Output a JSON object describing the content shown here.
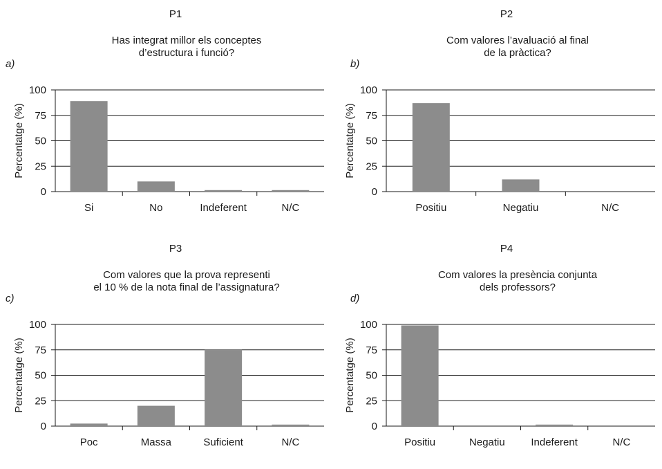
{
  "chart_data": [
    {
      "panel_label": "a)",
      "question_id": "P1",
      "title_lines": [
        "Has integrat millor els conceptes",
        "d’estructura i funció?"
      ],
      "type": "bar",
      "ylabel": "Percentatge (%)",
      "ylim": [
        0,
        100
      ],
      "yticks": [
        "0",
        "25",
        "50",
        "75",
        "100"
      ],
      "categories": [
        "Si",
        "No",
        "Indeferent",
        "N/C"
      ],
      "values": [
        89,
        10,
        1.5,
        1.5
      ],
      "bar_color": "#8c8c8c",
      "grid": true
    },
    {
      "panel_label": "b)",
      "question_id": "P2",
      "title_lines": [
        "Com valores l’avaluació al final",
        "de la pràctica?"
      ],
      "type": "bar",
      "ylabel": "Percentatge (%)",
      "ylim": [
        0,
        100
      ],
      "yticks": [
        "0",
        "25",
        "50",
        "75",
        "100"
      ],
      "categories": [
        "Positiu",
        "Negatiu",
        "N/C"
      ],
      "values": [
        87,
        12,
        0
      ],
      "bar_color": "#8c8c8c",
      "grid": true
    },
    {
      "panel_label": "c)",
      "question_id": "P3",
      "title_lines": [
        "Com valores que la prova representi",
        "el 10 % de la nota final de l’assignatura?"
      ],
      "type": "bar",
      "ylabel": "Percentatge (%)",
      "ylim": [
        0,
        100
      ],
      "yticks": [
        "0",
        "25",
        "50",
        "75",
        "100"
      ],
      "categories": [
        "Poc",
        "Massa",
        "Suficient",
        "N/C"
      ],
      "values": [
        2.5,
        20,
        75,
        1.5
      ],
      "bar_color": "#8c8c8c",
      "grid": true
    },
    {
      "panel_label": "d)",
      "question_id": "P4",
      "title_lines": [
        "Com valores la presència conjunta",
        "dels professors?"
      ],
      "type": "bar",
      "ylabel": "Percentatge (%)",
      "ylim": [
        0,
        100
      ],
      "yticks": [
        "0",
        "25",
        "50",
        "75",
        "100"
      ],
      "categories": [
        "Positiu",
        "Negatiu",
        "Indeferent",
        "N/C"
      ],
      "values": [
        99,
        0,
        1.5,
        0
      ],
      "bar_color": "#8c8c8c",
      "grid": true
    }
  ]
}
